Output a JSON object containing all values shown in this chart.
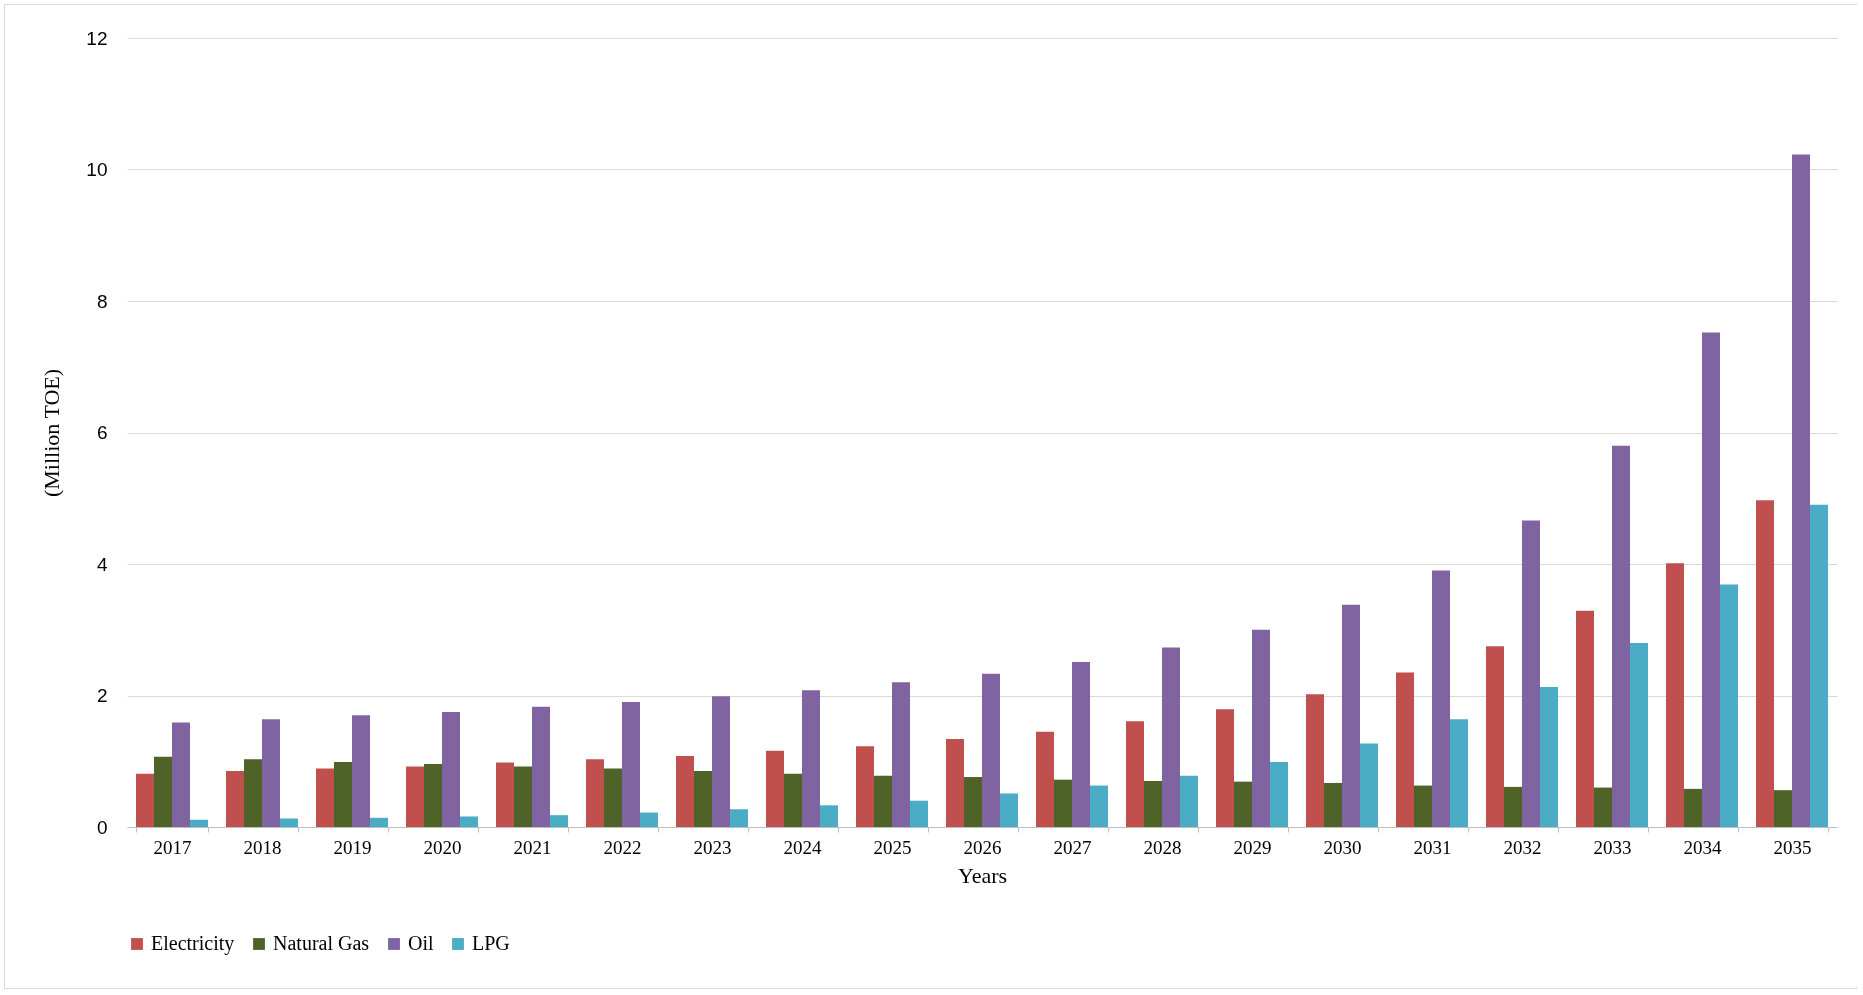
{
  "chart_data": {
    "type": "bar",
    "xlabel": "Years",
    "ylabel": "(Million TOE)",
    "categories": [
      "2017",
      "2018",
      "2019",
      "2020",
      "2021",
      "2022",
      "2023",
      "2024",
      "2025",
      "2026",
      "2027",
      "2028",
      "2029",
      "2030",
      "2031",
      "2032",
      "2033",
      "2034",
      "2035"
    ],
    "series": [
      {
        "name": "Electricity",
        "color": "#c0504d",
        "values": [
          0.81,
          0.85,
          0.89,
          0.92,
          0.98,
          1.03,
          1.08,
          1.16,
          1.23,
          1.34,
          1.45,
          1.61,
          1.79,
          2.02,
          2.35,
          2.75,
          3.29,
          4.01,
          4.97
        ]
      },
      {
        "name": "Natural Gas",
        "color": "#4f6228",
        "values": [
          1.07,
          1.03,
          0.99,
          0.96,
          0.92,
          0.89,
          0.85,
          0.81,
          0.78,
          0.76,
          0.72,
          0.7,
          0.69,
          0.67,
          0.63,
          0.61,
          0.6,
          0.58,
          0.56
        ]
      },
      {
        "name": "Oil",
        "color": "#8064a2",
        "values": [
          1.59,
          1.64,
          1.7,
          1.75,
          1.83,
          1.9,
          1.99,
          2.08,
          2.2,
          2.33,
          2.51,
          2.73,
          3.0,
          3.38,
          3.9,
          4.66,
          5.8,
          7.52,
          10.23
        ]
      },
      {
        "name": "LPG",
        "color": "#4bacc6",
        "values": [
          0.11,
          0.13,
          0.14,
          0.16,
          0.18,
          0.22,
          0.27,
          0.33,
          0.4,
          0.51,
          0.63,
          0.78,
          0.99,
          1.27,
          1.64,
          2.13,
          2.8,
          3.69,
          4.9
        ]
      }
    ],
    "ylim": [
      0,
      12
    ],
    "yticks": [
      0,
      2,
      4,
      6,
      8,
      10,
      12
    ],
    "grid": "y",
    "legend": "bottom"
  }
}
